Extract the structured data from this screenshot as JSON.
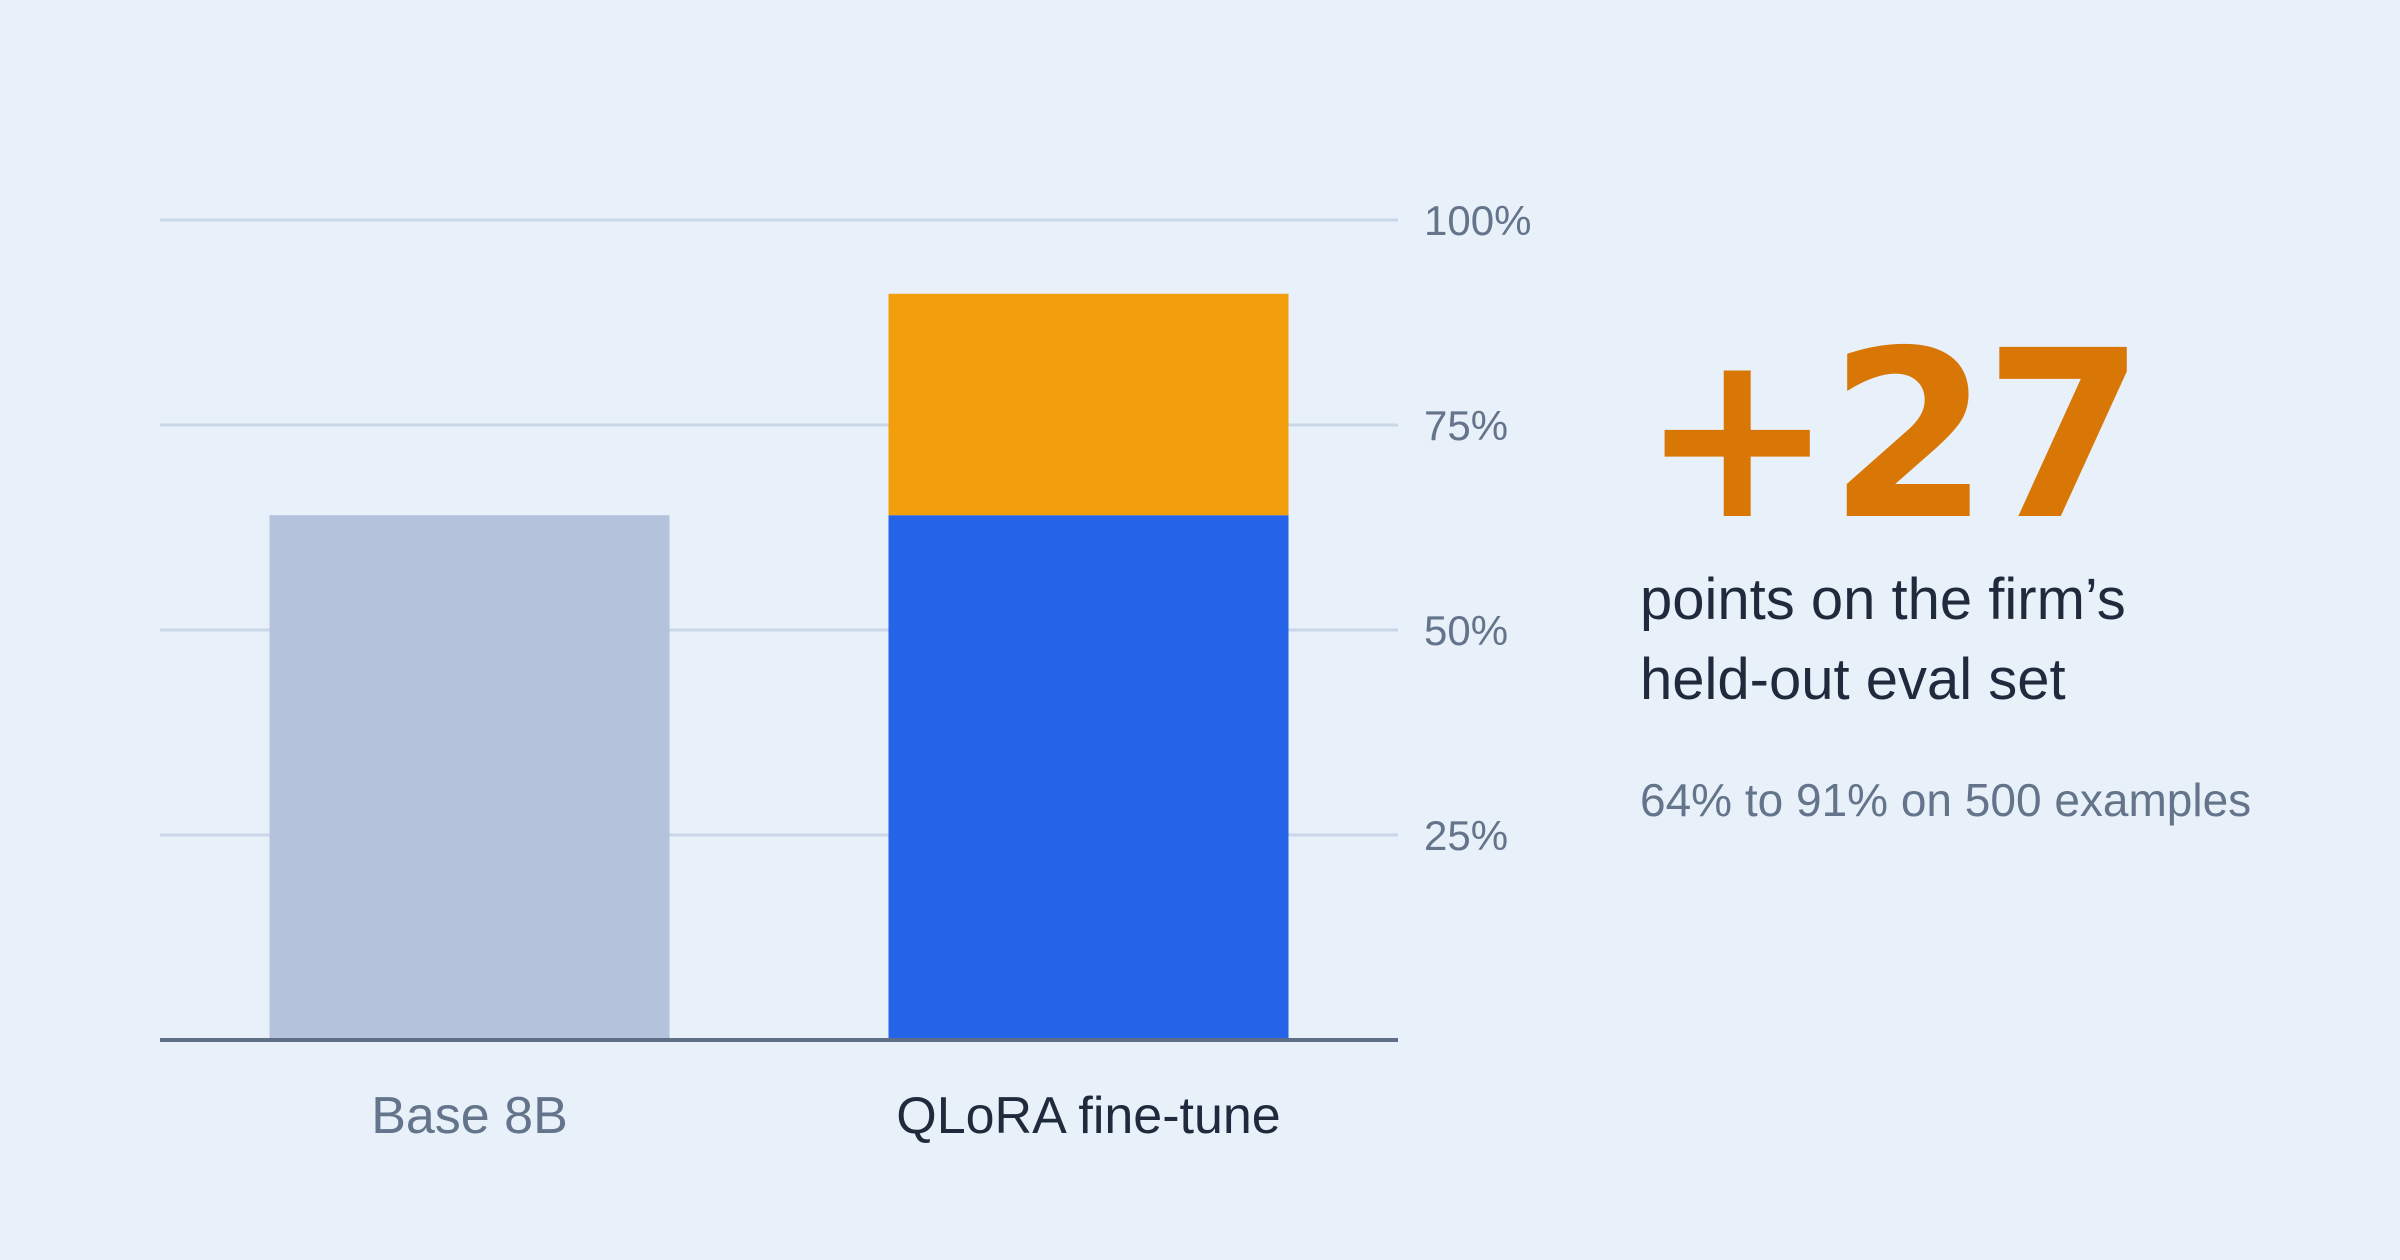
{
  "chart_data": {
    "type": "bar",
    "stacked": true,
    "categories": [
      "Base 8B",
      "QLoRA fine-tune"
    ],
    "series": [
      {
        "values": [
          64,
          64
        ],
        "colors": [
          "#b4c3db",
          "#2563e8"
        ]
      },
      {
        "values": [
          0,
          27
        ],
        "colors": [
          "#b4c3db",
          "#f29e0c"
        ]
      }
    ],
    "yticks": [
      25,
      50,
      75,
      100
    ],
    "ytick_labels": [
      "25%",
      "50%",
      "75%",
      "100%"
    ],
    "ylim": [
      0,
      100
    ],
    "grid": true,
    "axis_position": "right",
    "title": "",
    "xlabel": "",
    "ylabel": ""
  },
  "callout": {
    "value": "+27",
    "line1": "points on the firm’s",
    "line2": "held-out eval set",
    "detail": "64% to 91% on 500 examples"
  },
  "colors": {
    "background": "#e8f0fa",
    "gridline": "#c9d7e8",
    "baseline": "#5f6f86",
    "tick_label": "#64748b",
    "category_label_base": "#64748b",
    "category_label_highlight": "#1f2a3c",
    "accent": "#d97706"
  }
}
